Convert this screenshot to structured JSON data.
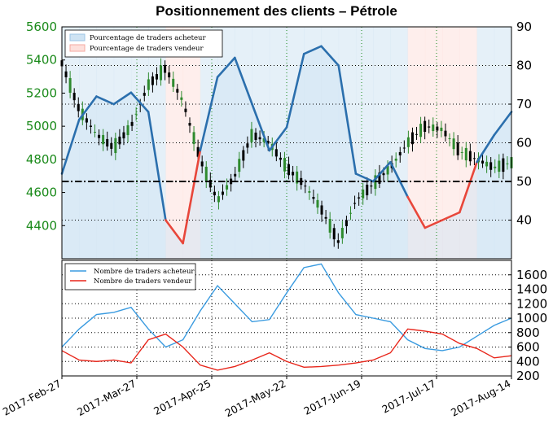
{
  "title": "Positionnement des clients – Pétrole",
  "chart_data": [
    {
      "type": "line",
      "title": "Positionnement des clients – Pétrole",
      "x_ticks": [
        "2017-Feb-27",
        "2017-Mar-27",
        "2017-Apr-25",
        "2017-May-22",
        "2017-Jun-19",
        "2017-Jul-17",
        "2017-Aug-14"
      ],
      "y_left_ticks": [
        4400,
        4600,
        4800,
        5000,
        5200,
        5400,
        5600
      ],
      "y_left_lim": [
        4200,
        5600
      ],
      "y_right_ticks": [
        40,
        50,
        60,
        70,
        80,
        90
      ],
      "y_right_lim": [
        30,
        90
      ],
      "reference_line": 50,
      "grid": true,
      "legend": {
        "position": "top-left",
        "entries": [
          "Pourcentage de traders acheteur",
          "Pourcentage de traders vendeur"
        ]
      },
      "colors": {
        "buy": "#2b6fad",
        "buy_fill": "#cfe3f3",
        "sell": "#e8463a",
        "sell_fill": "#fde0dc",
        "price_up": "#2e8b2e",
        "price_down": "#000000"
      },
      "x": [
        "2017-Feb-27",
        "2017-Mar-06",
        "2017-Mar-13",
        "2017-Mar-20",
        "2017-Mar-27",
        "2017-Apr-03",
        "2017-Apr-10",
        "2017-Apr-17",
        "2017-Apr-25",
        "2017-May-01",
        "2017-May-08",
        "2017-May-15",
        "2017-May-22",
        "2017-May-29",
        "2017-Jun-05",
        "2017-Jun-12",
        "2017-Jun-19",
        "2017-Jun-26",
        "2017-Jul-03",
        "2017-Jul-10",
        "2017-Jul-17",
        "2017-Jul-24",
        "2017-Jul-31",
        "2017-Aug-07",
        "2017-Aug-14",
        "2017-Aug-21",
        "2017-Aug-28"
      ],
      "series": [
        {
          "name": "Pourcentage de traders acheteur",
          "axis": "right",
          "values": [
            52,
            66,
            72,
            70,
            73,
            68,
            40,
            34,
            58,
            77,
            82,
            70,
            58,
            64,
            83,
            85,
            80,
            52,
            50,
            55,
            46,
            38,
            40,
            42,
            55,
            62,
            68
          ]
        },
        {
          "name": "Prix",
          "axis": "left",
          "values": [
            5380,
            5100,
            4950,
            4870,
            5000,
            5250,
            5350,
            5150,
            4800,
            4550,
            4700,
            4950,
            4900,
            4750,
            4650,
            4500,
            4300,
            4550,
            4650,
            4750,
            4900,
            5000,
            4980,
            4850,
            4800,
            4750,
            4780
          ]
        }
      ]
    },
    {
      "type": "line",
      "y_right_ticks": [
        200,
        400,
        600,
        800,
        1000,
        1200,
        1400,
        1600
      ],
      "y_right_lim": [
        200,
        1800
      ],
      "grid": true,
      "legend": {
        "position": "top-left",
        "entries": [
          "Nombre de traders acheteur",
          "Nombre de traders vendeur"
        ]
      },
      "series": [
        {
          "name": "Nombre de traders acheteur",
          "values": [
            600,
            850,
            1050,
            1080,
            1150,
            850,
            600,
            700,
            1100,
            1450,
            1200,
            950,
            980,
            1350,
            1700,
            1750,
            1350,
            1050,
            1000,
            950,
            700,
            580,
            550,
            600,
            750,
            900,
            1000
          ]
        },
        {
          "name": "Nombre de traders vendeur",
          "values": [
            550,
            420,
            400,
            420,
            380,
            700,
            780,
            600,
            350,
            280,
            330,
            420,
            520,
            400,
            320,
            330,
            350,
            380,
            420,
            520,
            850,
            820,
            780,
            650,
            580,
            450,
            480
          ]
        }
      ]
    }
  ]
}
